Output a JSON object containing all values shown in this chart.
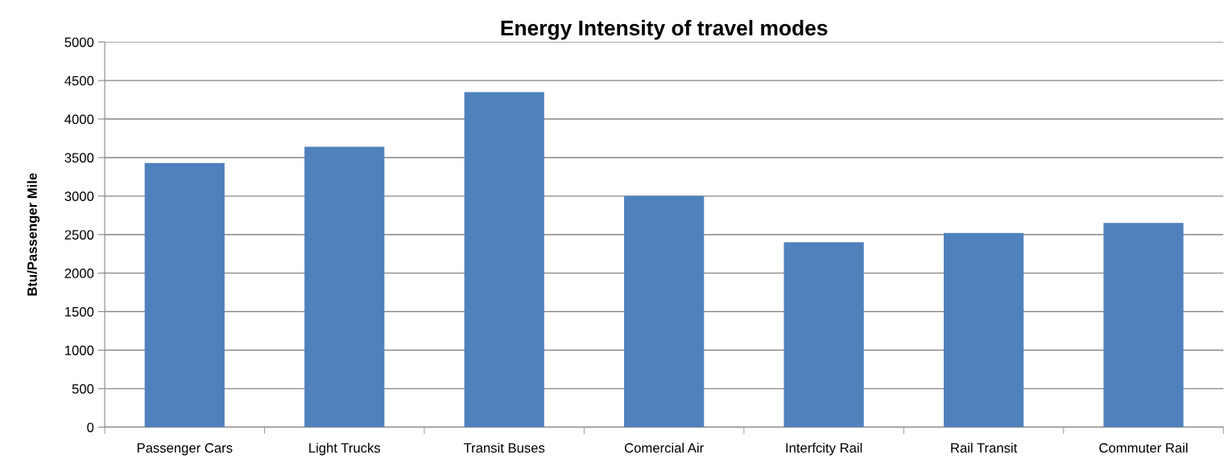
{
  "chart_data": {
    "type": "bar",
    "title": "Energy Intensity of travel modes",
    "ylabel": "Btu/Passenger Mile",
    "categories": [
      "Passenger Cars",
      "Light Trucks",
      "Transit Buses",
      "Comercial Air",
      "Interfcity Rail",
      "Rail Transit",
      "Commuter Rail"
    ],
    "values": [
      3430,
      3640,
      4350,
      3000,
      2400,
      2520,
      2650
    ],
    "color": "#4f81bd",
    "ylim": [
      0,
      5000
    ],
    "yticks": [
      0,
      500,
      1000,
      1500,
      2000,
      2500,
      3000,
      3500,
      4000,
      4500,
      5000
    ],
    "grid": "y",
    "legend": false
  }
}
